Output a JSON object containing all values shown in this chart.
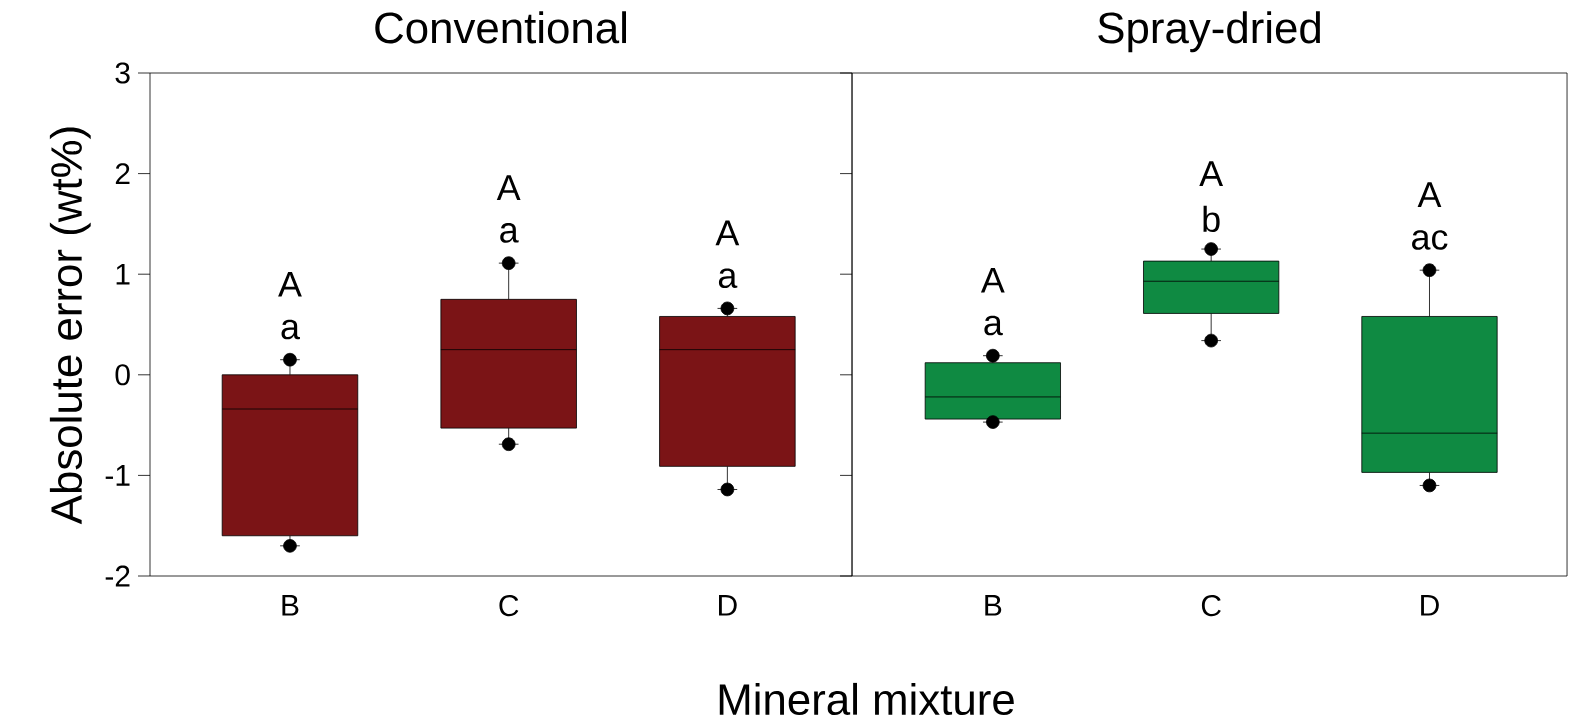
{
  "chart_data": [
    {
      "type": "box",
      "title": "Conventional",
      "ylabel": "Absolute error (wt%)",
      "xlabel": "Mineral mixture",
      "categories": [
        "B",
        "C",
        "D"
      ],
      "color": "#7b1416",
      "ylim": [
        -2,
        3
      ],
      "yticks": [
        -2,
        -1,
        0,
        1,
        2,
        3
      ],
      "boxes": [
        {
          "low": -1.7,
          "q1": -1.6,
          "median": -0.34,
          "q3": 0,
          "high": 0.15,
          "outliers": [
            -1.7,
            0.15
          ]
        },
        {
          "low": -0.69,
          "q1": -0.53,
          "median": 0.25,
          "q3": 0.75,
          "high": 1.11,
          "outliers": [
            -0.69,
            1.11
          ]
        },
        {
          "low": -1.14,
          "q1": -0.91,
          "median": 0.25,
          "q3": 0.58,
          "high": 0.66,
          "outliers": [
            -1.14,
            0.66
          ]
        }
      ],
      "annotations": [
        "A",
        "a",
        "A",
        "a",
        "A",
        "a"
      ]
    },
    {
      "type": "box",
      "title": "Spray-dried",
      "categories": [
        "B",
        "C",
        "D"
      ],
      "color": "#0f8a42",
      "ylim": [
        -2,
        3
      ],
      "yticks": [
        -2,
        -1,
        0,
        1,
        2,
        3
      ],
      "tick_labels": "x",
      "boxes": [
        {
          "low": -0.47,
          "q1": -0.44,
          "median": -0.22,
          "q3": 0.12,
          "high": 0.19,
          "outliers": [
            -0.47,
            0.19
          ]
        },
        {
          "low": 0.34,
          "q1": 0.61,
          "median": 0.93,
          "q3": 1.13,
          "high": 1.25,
          "outliers": [
            0.34,
            1.25
          ]
        },
        {
          "low": -1.1,
          "q1": -0.97,
          "median": -0.58,
          "q3": 0.58,
          "high": 1.04,
          "outliers": [
            -1.1,
            1.04
          ]
        }
      ],
      "annotations": [
        "A",
        "a",
        "A",
        "b",
        "A",
        "ac"
      ]
    }
  ]
}
